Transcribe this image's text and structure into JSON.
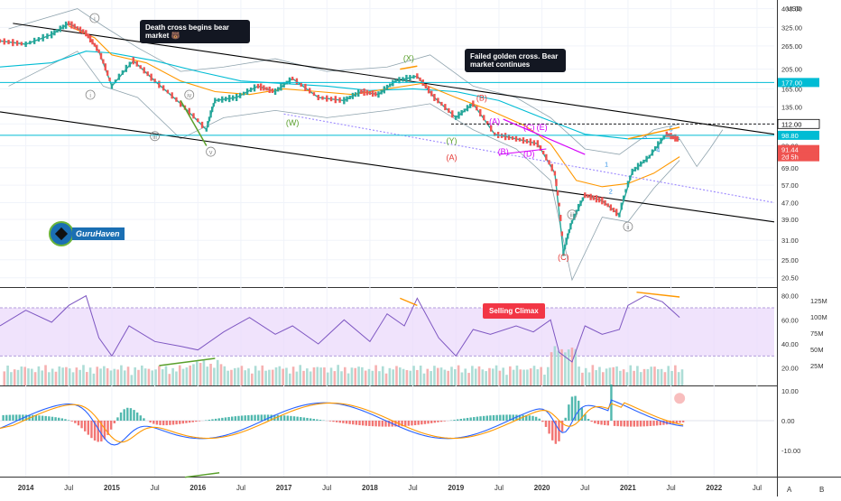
{
  "chart_data": [
    {
      "type": "line",
      "panel": "price",
      "y_axis_unit": "USD",
      "y_scale": "log",
      "y_ticks": [
        "400.00",
        "325.00",
        "265.00",
        "205.00",
        "165.00",
        "135.00",
        "112.00",
        "88.00",
        "69.00",
        "57.00",
        "47.00",
        "39.00",
        "31.00",
        "25.00",
        "20.50"
      ],
      "x_ticks": [
        "2014",
        "Jul",
        "2015",
        "Jul",
        "2016",
        "Jul",
        "2017",
        "Jul",
        "2018",
        "Jul",
        "2019",
        "Jul",
        "2020",
        "Jul",
        "2021",
        "Jul",
        "2022",
        "Jul"
      ],
      "series": [
        {
          "name": "price",
          "color": "#26a69a",
          "x": [
            2013.7,
            2014.0,
            2014.3,
            2014.5,
            2014.7,
            2014.85,
            2015.0,
            2015.25,
            2015.5,
            2015.8,
            2016.1,
            2016.2,
            2016.45,
            2016.7,
            2016.9,
            2017.1,
            2017.4,
            2017.7,
            2017.9,
            2018.1,
            2018.3,
            2018.55,
            2018.75,
            2019.0,
            2019.2,
            2019.45,
            2019.7,
            2019.95,
            2020.15,
            2020.25,
            2020.35,
            2020.5,
            2020.7,
            2020.9,
            2021.05,
            2021.25,
            2021.45,
            2021.6
          ],
          "y": [
            280,
            270,
            300,
            340,
            305,
            250,
            170,
            225,
            180,
            140,
            105,
            145,
            150,
            170,
            160,
            185,
            150,
            145,
            160,
            155,
            180,
            190,
            150,
            120,
            140,
            100,
            95,
            90,
            65,
            27,
            38,
            51,
            48,
            41,
            66,
            78,
            100,
            94
          ]
        },
        {
          "name": "upper-channel",
          "color": "#000000",
          "x": [
            2013.85,
            2022.7
          ],
          "y": [
            340,
            100
          ]
        },
        {
          "name": "lower-channel",
          "color": "#000000",
          "x": [
            2013.7,
            2022.7
          ],
          "y": [
            128,
            38
          ]
        },
        {
          "name": "cyan-ma",
          "color": "#00bcd4",
          "x": [
            2013.7,
            2014.3,
            2014.7,
            2015.0,
            2015.5,
            2016.0,
            2016.5,
            2017.0,
            2017.5,
            2018.0,
            2018.5,
            2019.0,
            2019.5,
            2020.0,
            2020.5,
            2021.0,
            2021.6
          ],
          "y": [
            210,
            220,
            250,
            245,
            225,
            200,
            180,
            175,
            170,
            162,
            165,
            160,
            145,
            120,
            100,
            95,
            96
          ]
        },
        {
          "name": "orange-ma",
          "color": "#ff9800",
          "x": [
            2014.5,
            2014.8,
            2015.0,
            2015.4,
            2015.8,
            2016.2,
            2016.6,
            2017.0,
            2017.4,
            2017.8,
            2018.2,
            2018.6,
            2019.0,
            2019.4,
            2019.8,
            2020.1,
            2020.4,
            2020.7,
            2021.0,
            2021.3,
            2021.6
          ],
          "y": [
            330,
            290,
            240,
            220,
            180,
            160,
            155,
            165,
            160,
            155,
            165,
            175,
            150,
            130,
            110,
            90,
            60,
            56,
            58,
            65,
            78
          ]
        },
        {
          "name": "lavender-dotted",
          "color": "#9c88ff",
          "x": [
            2017.0,
            2022.7
          ],
          "y": [
            125,
            47
          ]
        }
      ],
      "levels": [
        {
          "value": "177.00",
          "color": "#00bcd4"
        },
        {
          "value": "112.00",
          "color": "#000000"
        },
        {
          "value": "98.80",
          "color": "#00bcd4"
        },
        {
          "value": "91.44",
          "color": "#ef5350"
        },
        {
          "value": "2d 5h",
          "color": "#ef5350"
        }
      ],
      "wave_labels": [
        {
          "text": "i",
          "x": 2014.8,
          "y": 350,
          "color": "#888888"
        },
        {
          "text": "i",
          "x": 2014.75,
          "y": 150,
          "color": "#888888"
        },
        {
          "text": "iii",
          "x": 2015.5,
          "y": 95,
          "color": "#888888"
        },
        {
          "text": "iv",
          "x": 2015.9,
          "y": 150,
          "color": "#888888"
        },
        {
          "text": "v",
          "x": 2016.15,
          "y": 80,
          "color": "#888888"
        },
        {
          "text": "(X)",
          "x": 2018.45,
          "y": 225,
          "color": "#5aa02c"
        },
        {
          "text": "(W)",
          "x": 2017.1,
          "y": 110,
          "color": "#5aa02c"
        },
        {
          "text": "(Y)",
          "x": 2018.95,
          "y": 90,
          "color": "#5aa02c"
        },
        {
          "text": "(B)",
          "x": 2019.3,
          "y": 145,
          "color": "#e53935"
        },
        {
          "text": "(A)",
          "x": 2018.95,
          "y": 75,
          "color": "#e53935"
        },
        {
          "text": "(C)",
          "x": 2020.25,
          "y": 25,
          "color": "#e53935"
        },
        {
          "text": "(A)",
          "x": 2019.45,
          "y": 112,
          "color": "#d500f9"
        },
        {
          "text": "(C)",
          "x": 2019.85,
          "y": 105,
          "color": "#d500f9"
        },
        {
          "text": "(E)",
          "x": 2020.0,
          "y": 105,
          "color": "#d500f9"
        },
        {
          "text": "(B)",
          "x": 2019.55,
          "y": 80,
          "color": "#d500f9"
        },
        {
          "text": "(D)",
          "x": 2019.85,
          "y": 78,
          "color": "#d500f9"
        },
        {
          "text": "1",
          "x": 2020.75,
          "y": 70,
          "color": "#1e88e5"
        },
        {
          "text": "2",
          "x": 2020.8,
          "y": 52,
          "color": "#1e88e5"
        },
        {
          "text": "3",
          "x": 2021.2,
          "y": 95,
          "color": "#1e88e5"
        },
        {
          "text": "4",
          "x": 2021.35,
          "y": 82,
          "color": "#1e88e5"
        },
        {
          "text": "5",
          "x": 2021.5,
          "y": 103,
          "color": "#1e88e5"
        },
        {
          "text": "iii",
          "x": 2020.35,
          "y": 40,
          "color": "#888888"
        },
        {
          "text": "ii",
          "x": 2021.0,
          "y": 35,
          "color": "#888888"
        }
      ],
      "annotations": [
        {
          "text": "Death cross begins bear market 🐻"
        },
        {
          "text": "Failed golden cross. Bear market continues"
        }
      ]
    },
    {
      "type": "line",
      "panel": "rsi",
      "y_ticks": [
        "80.00",
        "60.00",
        "40.00",
        "20.00"
      ],
      "volume_ticks": [
        "125M",
        "100M",
        "75M",
        "50M",
        "25M"
      ],
      "band": [
        30,
        70
      ],
      "series": [
        {
          "name": "rsi",
          "color": "#7e57c2",
          "x": [
            2013.7,
            2014.0,
            2014.3,
            2014.5,
            2014.7,
            2014.85,
            2015.0,
            2015.2,
            2015.5,
            2015.8,
            2016.0,
            2016.3,
            2016.6,
            2016.9,
            2017.1,
            2017.4,
            2017.7,
            2018.0,
            2018.2,
            2018.4,
            2018.55,
            2018.8,
            2019.0,
            2019.2,
            2019.4,
            2019.7,
            2019.9,
            2020.1,
            2020.2,
            2020.35,
            2020.5,
            2020.7,
            2020.9,
            2021.0,
            2021.2,
            2021.4,
            2021.6
          ],
          "y": [
            55,
            68,
            58,
            72,
            80,
            45,
            30,
            55,
            42,
            38,
            35,
            50,
            62,
            48,
            55,
            40,
            60,
            42,
            65,
            55,
            78,
            45,
            30,
            52,
            48,
            55,
            50,
            60,
            33,
            25,
            55,
            48,
            52,
            72,
            80,
            75,
            62
          ]
        }
      ],
      "annotations": [
        {
          "text": "Selling Climax"
        }
      ]
    },
    {
      "type": "bar",
      "panel": "macd",
      "y_ticks": [
        "10.00",
        "0.00",
        "-10.00"
      ],
      "series": [
        {
          "name": "macd",
          "color": "#2962ff"
        },
        {
          "name": "signal",
          "color": "#ff9800"
        },
        {
          "name": "histogram",
          "color": "#26a69a"
        }
      ]
    }
  ],
  "axis_buttons": {
    "a": "A",
    "b": "B"
  }
}
